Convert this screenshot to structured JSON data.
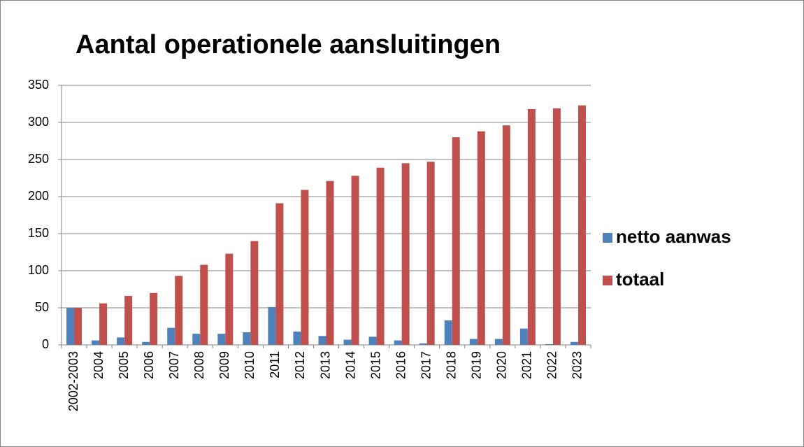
{
  "chart_data": {
    "type": "bar",
    "title": "Aantal operationele aansluitingen",
    "categories": [
      "2002-2003",
      "2004",
      "2005",
      "2006",
      "2007",
      "2008",
      "2009",
      "2010",
      "2011",
      "2012",
      "2013",
      "2014",
      "2015",
      "2016",
      "2017",
      "2018",
      "2019",
      "2020",
      "2021",
      "2022",
      "2023"
    ],
    "series": [
      {
        "name": "netto aanwas",
        "color": "#4f81bd",
        "values": [
          50,
          6,
          10,
          4,
          23,
          15,
          15,
          17,
          51,
          18,
          12,
          7,
          11,
          6,
          2,
          33,
          8,
          8,
          22,
          1,
          4
        ]
      },
      {
        "name": "totaal",
        "color": "#c0504d",
        "values": [
          50,
          56,
          66,
          70,
          93,
          108,
          123,
          140,
          191,
          209,
          221,
          228,
          239,
          245,
          247,
          280,
          288,
          296,
          318,
          319,
          323
        ]
      }
    ],
    "ylim": [
      0,
      350
    ],
    "yticks": [
      0,
      50,
      100,
      150,
      200,
      250,
      300,
      350
    ],
    "grid": true,
    "legend": "right"
  }
}
